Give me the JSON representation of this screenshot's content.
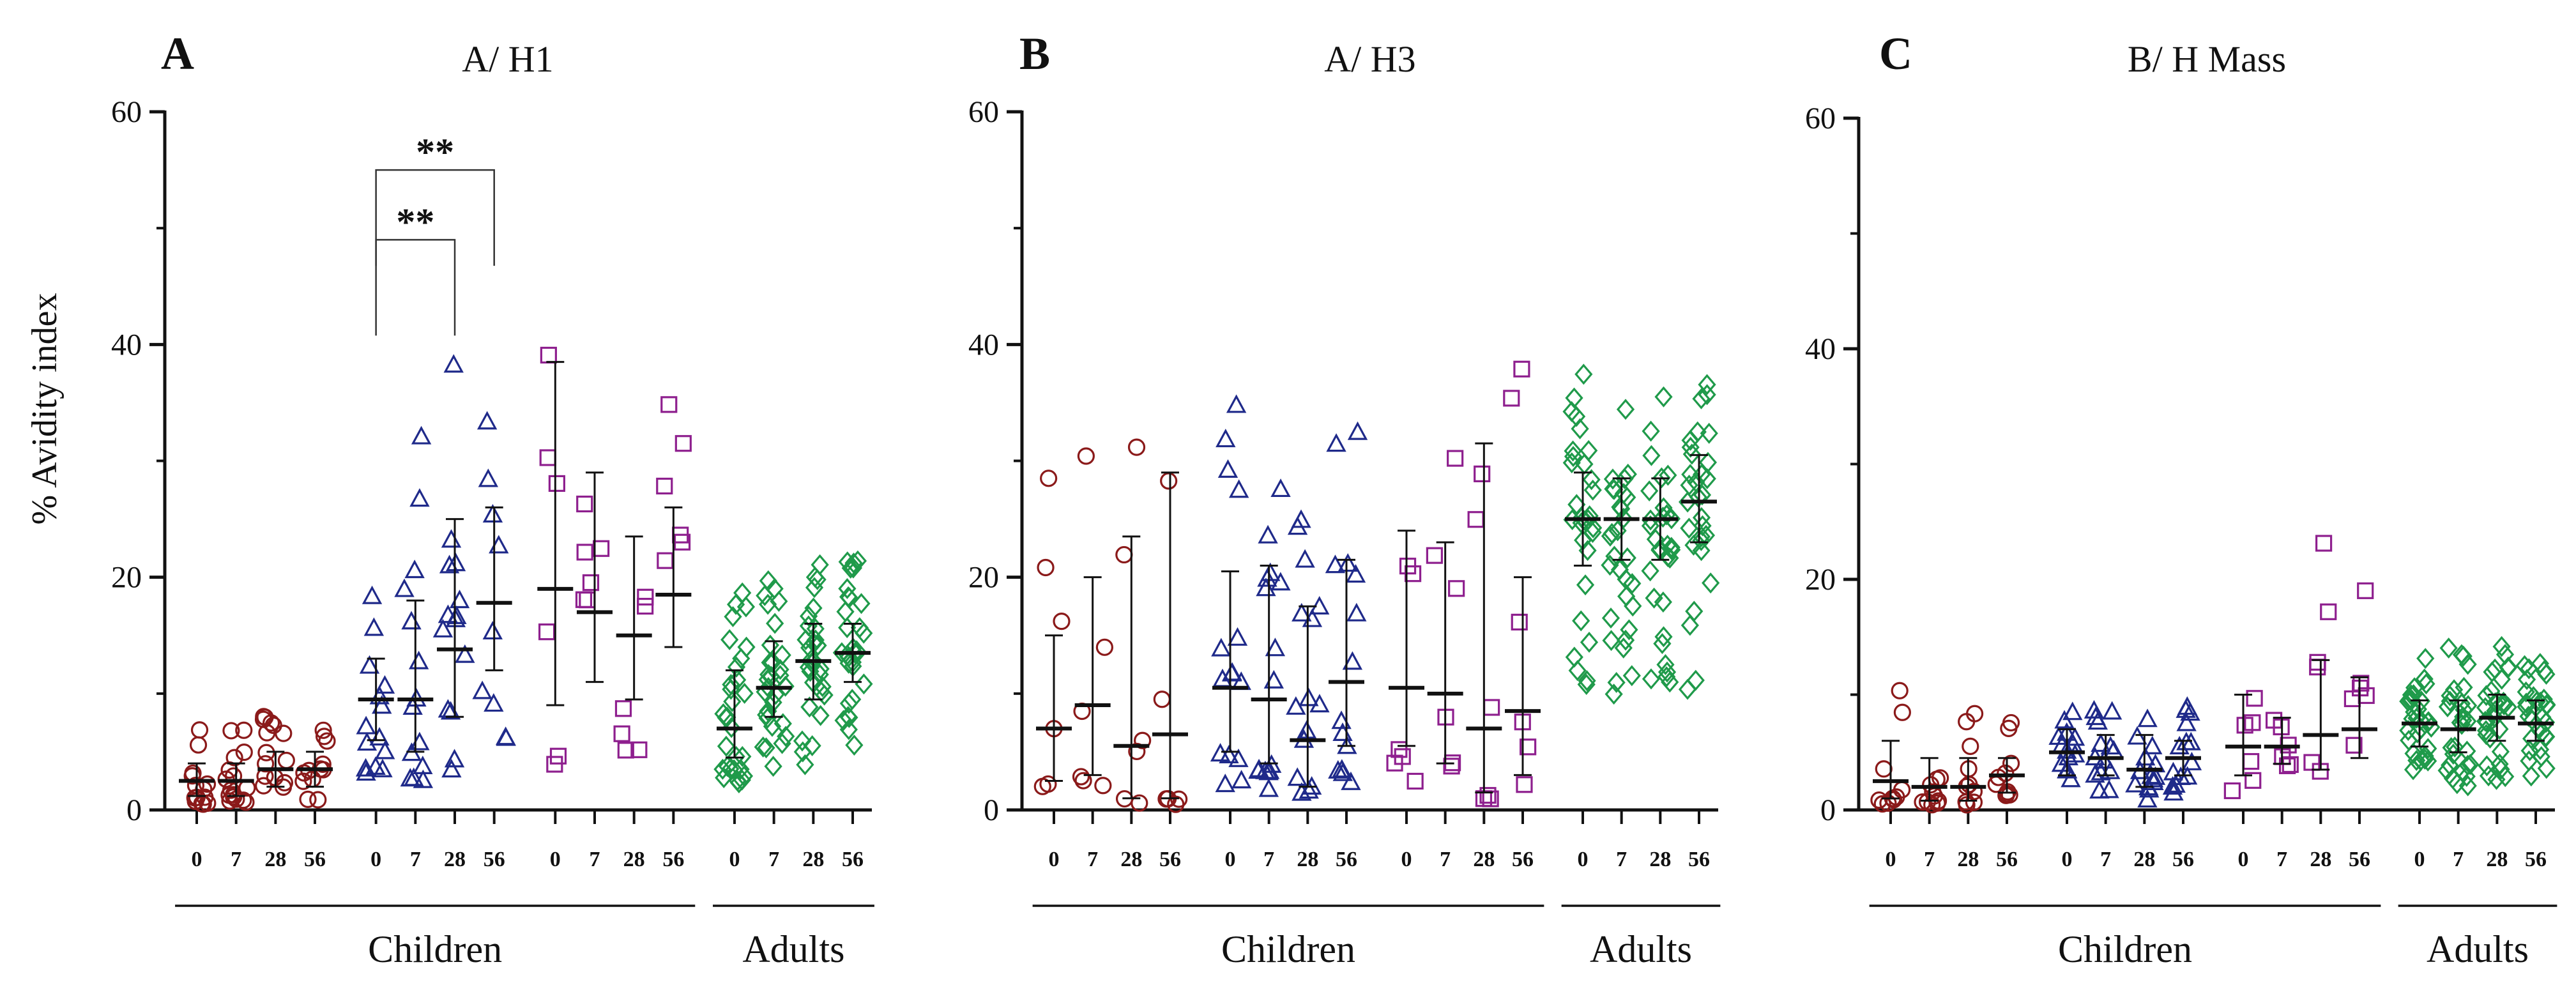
{
  "figure": {
    "ylabel": "% Avidity index",
    "xtick_labels": [
      "0",
      "7",
      "28",
      "56"
    ],
    "group_labels": {
      "children": "Children",
      "adults": "Adults"
    }
  },
  "chart_data": [
    {
      "type": "scatter",
      "panel": "A",
      "title": "A/ H1",
      "ylabel": "% Avidity index",
      "ylim": [
        0,
        60
      ],
      "yticks": [
        0,
        20,
        40,
        60
      ],
      "categories": [
        "0",
        "7",
        "28",
        "56",
        "0",
        "7",
        "28",
        "56",
        "0",
        "7",
        "28",
        "56",
        "0",
        "7",
        "28",
        "56"
      ],
      "groups": [
        {
          "name": "Children (red, circles)",
          "color": "#8b1a1a",
          "marker": "circle"
        },
        {
          "name": "Children (blue, triangles)",
          "color": "#1f2a8a",
          "marker": "triangle"
        },
        {
          "name": "Children (purple, squares)",
          "color": "#8e1f8e",
          "marker": "square"
        },
        {
          "name": "Adults (green, diamonds)",
          "color": "#1f9a4a",
          "marker": "diamond"
        }
      ],
      "series": [
        {
          "name": "Children red",
          "group": 0,
          "median": [
            2.5,
            2.5,
            3.5,
            3.5
          ],
          "q1": [
            1.2,
            1.2,
            2.0,
            2.0
          ],
          "q3": [
            4.0,
            4.0,
            5.0,
            5.0
          ],
          "n": [
            14,
            16,
            15,
            12
          ]
        },
        {
          "name": "Children blue",
          "group": 1,
          "median": [
            9.5,
            9.5,
            13.8,
            17.8
          ],
          "q1": [
            6.0,
            5.0,
            8.0,
            12.0
          ],
          "q3": [
            13.0,
            18.0,
            25.0,
            26.0
          ],
          "n": [
            14,
            14,
            14,
            9
          ]
        },
        {
          "name": "Children purple",
          "group": 2,
          "median": [
            19.0,
            17.0,
            15.0,
            18.5
          ],
          "q1": [
            9.0,
            11.0,
            9.5,
            14.0
          ],
          "q3": [
            38.5,
            29.0,
            23.5,
            26.0
          ],
          "n": [
            6,
            6,
            6,
            6
          ]
        },
        {
          "name": "Adults green",
          "group": 3,
          "median": [
            7.0,
            10.5,
            12.8,
            13.5
          ],
          "q1": [
            4.5,
            8.0,
            9.5,
            11.0
          ],
          "q3": [
            12.0,
            14.5,
            16.0,
            16.0
          ],
          "n": [
            30,
            30,
            30,
            30
          ]
        }
      ],
      "significance": [
        {
          "label": "**",
          "from_index": 4,
          "to_index": 6,
          "y": 49
        },
        {
          "label": "**",
          "from_index": 4,
          "to_index": 7,
          "y": 55
        }
      ],
      "group_spans": [
        {
          "label": "Children",
          "from_index": 0,
          "to_index": 11
        },
        {
          "label": "Adults",
          "from_index": 12,
          "to_index": 15
        }
      ]
    },
    {
      "type": "scatter",
      "panel": "B",
      "title": "A/ H3",
      "ylabel": "",
      "ylim": [
        0,
        60
      ],
      "yticks": [
        0,
        20,
        40,
        60
      ],
      "categories": [
        "0",
        "7",
        "28",
        "56",
        "0",
        "7",
        "28",
        "56",
        "0",
        "7",
        "28",
        "56",
        "0",
        "7",
        "28",
        "56"
      ],
      "groups": [
        {
          "name": "Children (red, circles)",
          "color": "#8b1a1a",
          "marker": "circle"
        },
        {
          "name": "Children (blue, triangles)",
          "color": "#1f2a8a",
          "marker": "triangle"
        },
        {
          "name": "Children (purple, squares)",
          "color": "#8e1f8e",
          "marker": "square"
        },
        {
          "name": "Adults (green, diamonds)",
          "color": "#1f9a4a",
          "marker": "diamond"
        }
      ],
      "series": [
        {
          "name": "Children red",
          "group": 0,
          "median": [
            7.0,
            9.0,
            5.5,
            6.5
          ],
          "q1": [
            2.5,
            3.0,
            1.0,
            1.0
          ],
          "q3": [
            15.0,
            20.0,
            23.5,
            29.0
          ],
          "n": [
            6,
            6,
            6,
            6
          ]
        },
        {
          "name": "Children blue",
          "group": 1,
          "median": [
            10.5,
            9.5,
            6.0,
            11.0
          ],
          "q1": [
            5.0,
            4.0,
            2.0,
            5.5
          ],
          "q3": [
            20.5,
            21.0,
            17.5,
            21.5
          ],
          "n": [
            15,
            15,
            15,
            14
          ]
        },
        {
          "name": "Children purple",
          "group": 2,
          "median": [
            10.5,
            10.0,
            7.0,
            8.5
          ],
          "q1": [
            5.5,
            4.0,
            1.5,
            3.0
          ],
          "q3": [
            24.0,
            23.0,
            31.5,
            20.0
          ],
          "n": [
            6,
            6,
            6,
            6
          ]
        },
        {
          "name": "Adults green",
          "group": 3,
          "median": [
            25.0,
            25.0,
            25.0,
            26.5
          ],
          "q1": [
            21.0,
            21.5,
            21.5,
            23.0
          ],
          "q3": [
            29.0,
            28.5,
            28.5,
            30.5
          ],
          "n": [
            30,
            30,
            30,
            30
          ]
        }
      ],
      "significance": [],
      "group_spans": [
        {
          "label": "Children",
          "from_index": 0,
          "to_index": 11
        },
        {
          "label": "Adults",
          "from_index": 12,
          "to_index": 15
        }
      ]
    },
    {
      "type": "scatter",
      "panel": "C",
      "title": "B/ H Mass",
      "ylabel": "",
      "ylim": [
        0,
        60
      ],
      "yticks": [
        0,
        20,
        40,
        60
      ],
      "categories": [
        "0",
        "7",
        "28",
        "56",
        "0",
        "7",
        "28",
        "56",
        "0",
        "7",
        "28",
        "56",
        "0",
        "7",
        "28",
        "56"
      ],
      "groups": [
        {
          "name": "Children (red, circles)",
          "color": "#8b1a1a",
          "marker": "circle"
        },
        {
          "name": "Children (blue, triangles)",
          "color": "#1f2a8a",
          "marker": "triangle"
        },
        {
          "name": "Children (purple, squares)",
          "color": "#8e1f8e",
          "marker": "square"
        },
        {
          "name": "Adults (green, diamonds)",
          "color": "#1f9a4a",
          "marker": "diamond"
        }
      ],
      "series": [
        {
          "name": "Children red",
          "group": 0,
          "median": [
            2.5,
            2.0,
            2.0,
            3.0
          ],
          "q1": [
            1.0,
            0.8,
            0.8,
            1.5
          ],
          "q3": [
            6.0,
            4.5,
            4.5,
            4.5
          ],
          "n": [
            10,
            10,
            10,
            10
          ]
        },
        {
          "name": "Children blue",
          "group": 1,
          "median": [
            5.0,
            4.5,
            3.5,
            4.5
          ],
          "q1": [
            3.0,
            3.0,
            2.0,
            3.0
          ],
          "q3": [
            7.0,
            6.5,
            6.5,
            6.0
          ],
          "n": [
            14,
            14,
            14,
            14
          ]
        },
        {
          "name": "Children purple",
          "group": 2,
          "median": [
            5.5,
            5.5,
            6.5,
            7.0
          ],
          "q1": [
            3.0,
            4.0,
            3.5,
            4.5
          ],
          "q3": [
            10.0,
            8.0,
            13.0,
            11.5
          ],
          "n": [
            6,
            6,
            6,
            6
          ]
        },
        {
          "name": "Adults green",
          "group": 3,
          "median": [
            7.5,
            7.0,
            8.0,
            7.5
          ],
          "q1": [
            5.5,
            5.0,
            6.0,
            6.0
          ],
          "q3": [
            9.5,
            9.5,
            10.0,
            9.5
          ],
          "n": [
            30,
            30,
            30,
            30
          ]
        }
      ],
      "significance": [],
      "group_spans": [
        {
          "label": "Children",
          "from_index": 0,
          "to_index": 11
        },
        {
          "label": "Adults",
          "from_index": 12,
          "to_index": 15
        }
      ]
    }
  ]
}
